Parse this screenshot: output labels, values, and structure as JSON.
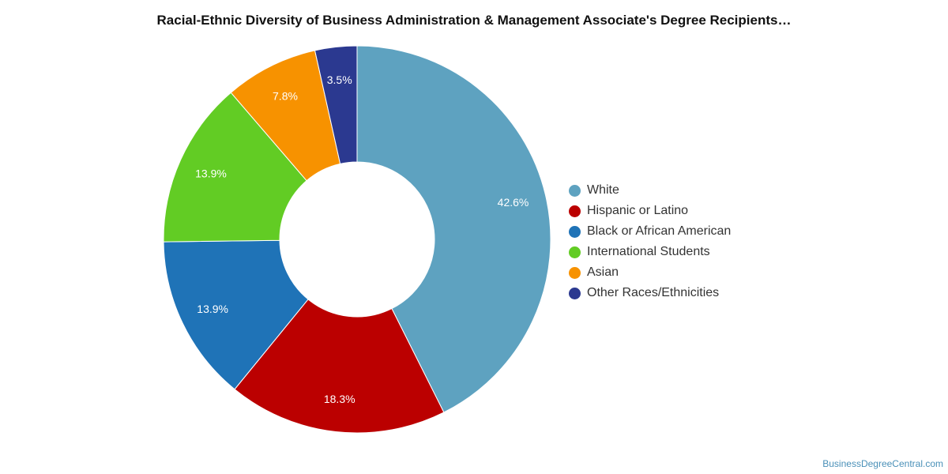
{
  "chart_data": {
    "type": "pie",
    "title": "Racial-Ethnic Diversity of Business Administration & Management Associate's Degree Recipients…",
    "donut": true,
    "categories": [
      "White",
      "Hispanic or Latino",
      "Black or African American",
      "International Students",
      "Asian",
      "Other Races/Ethnicities"
    ],
    "values": [
      42.6,
      18.3,
      13.9,
      13.9,
      7.8,
      3.5
    ],
    "labels": [
      "42.6%",
      "18.3%",
      "13.9%",
      "13.9%",
      "7.8%",
      "3.5%"
    ],
    "colors": [
      "#5ea2c0",
      "#bb0000",
      "#1f73b7",
      "#62cc24",
      "#f79200",
      "#2b3990"
    ],
    "legend_position": "right"
  },
  "watermark": "BusinessDegreeCentral.com"
}
